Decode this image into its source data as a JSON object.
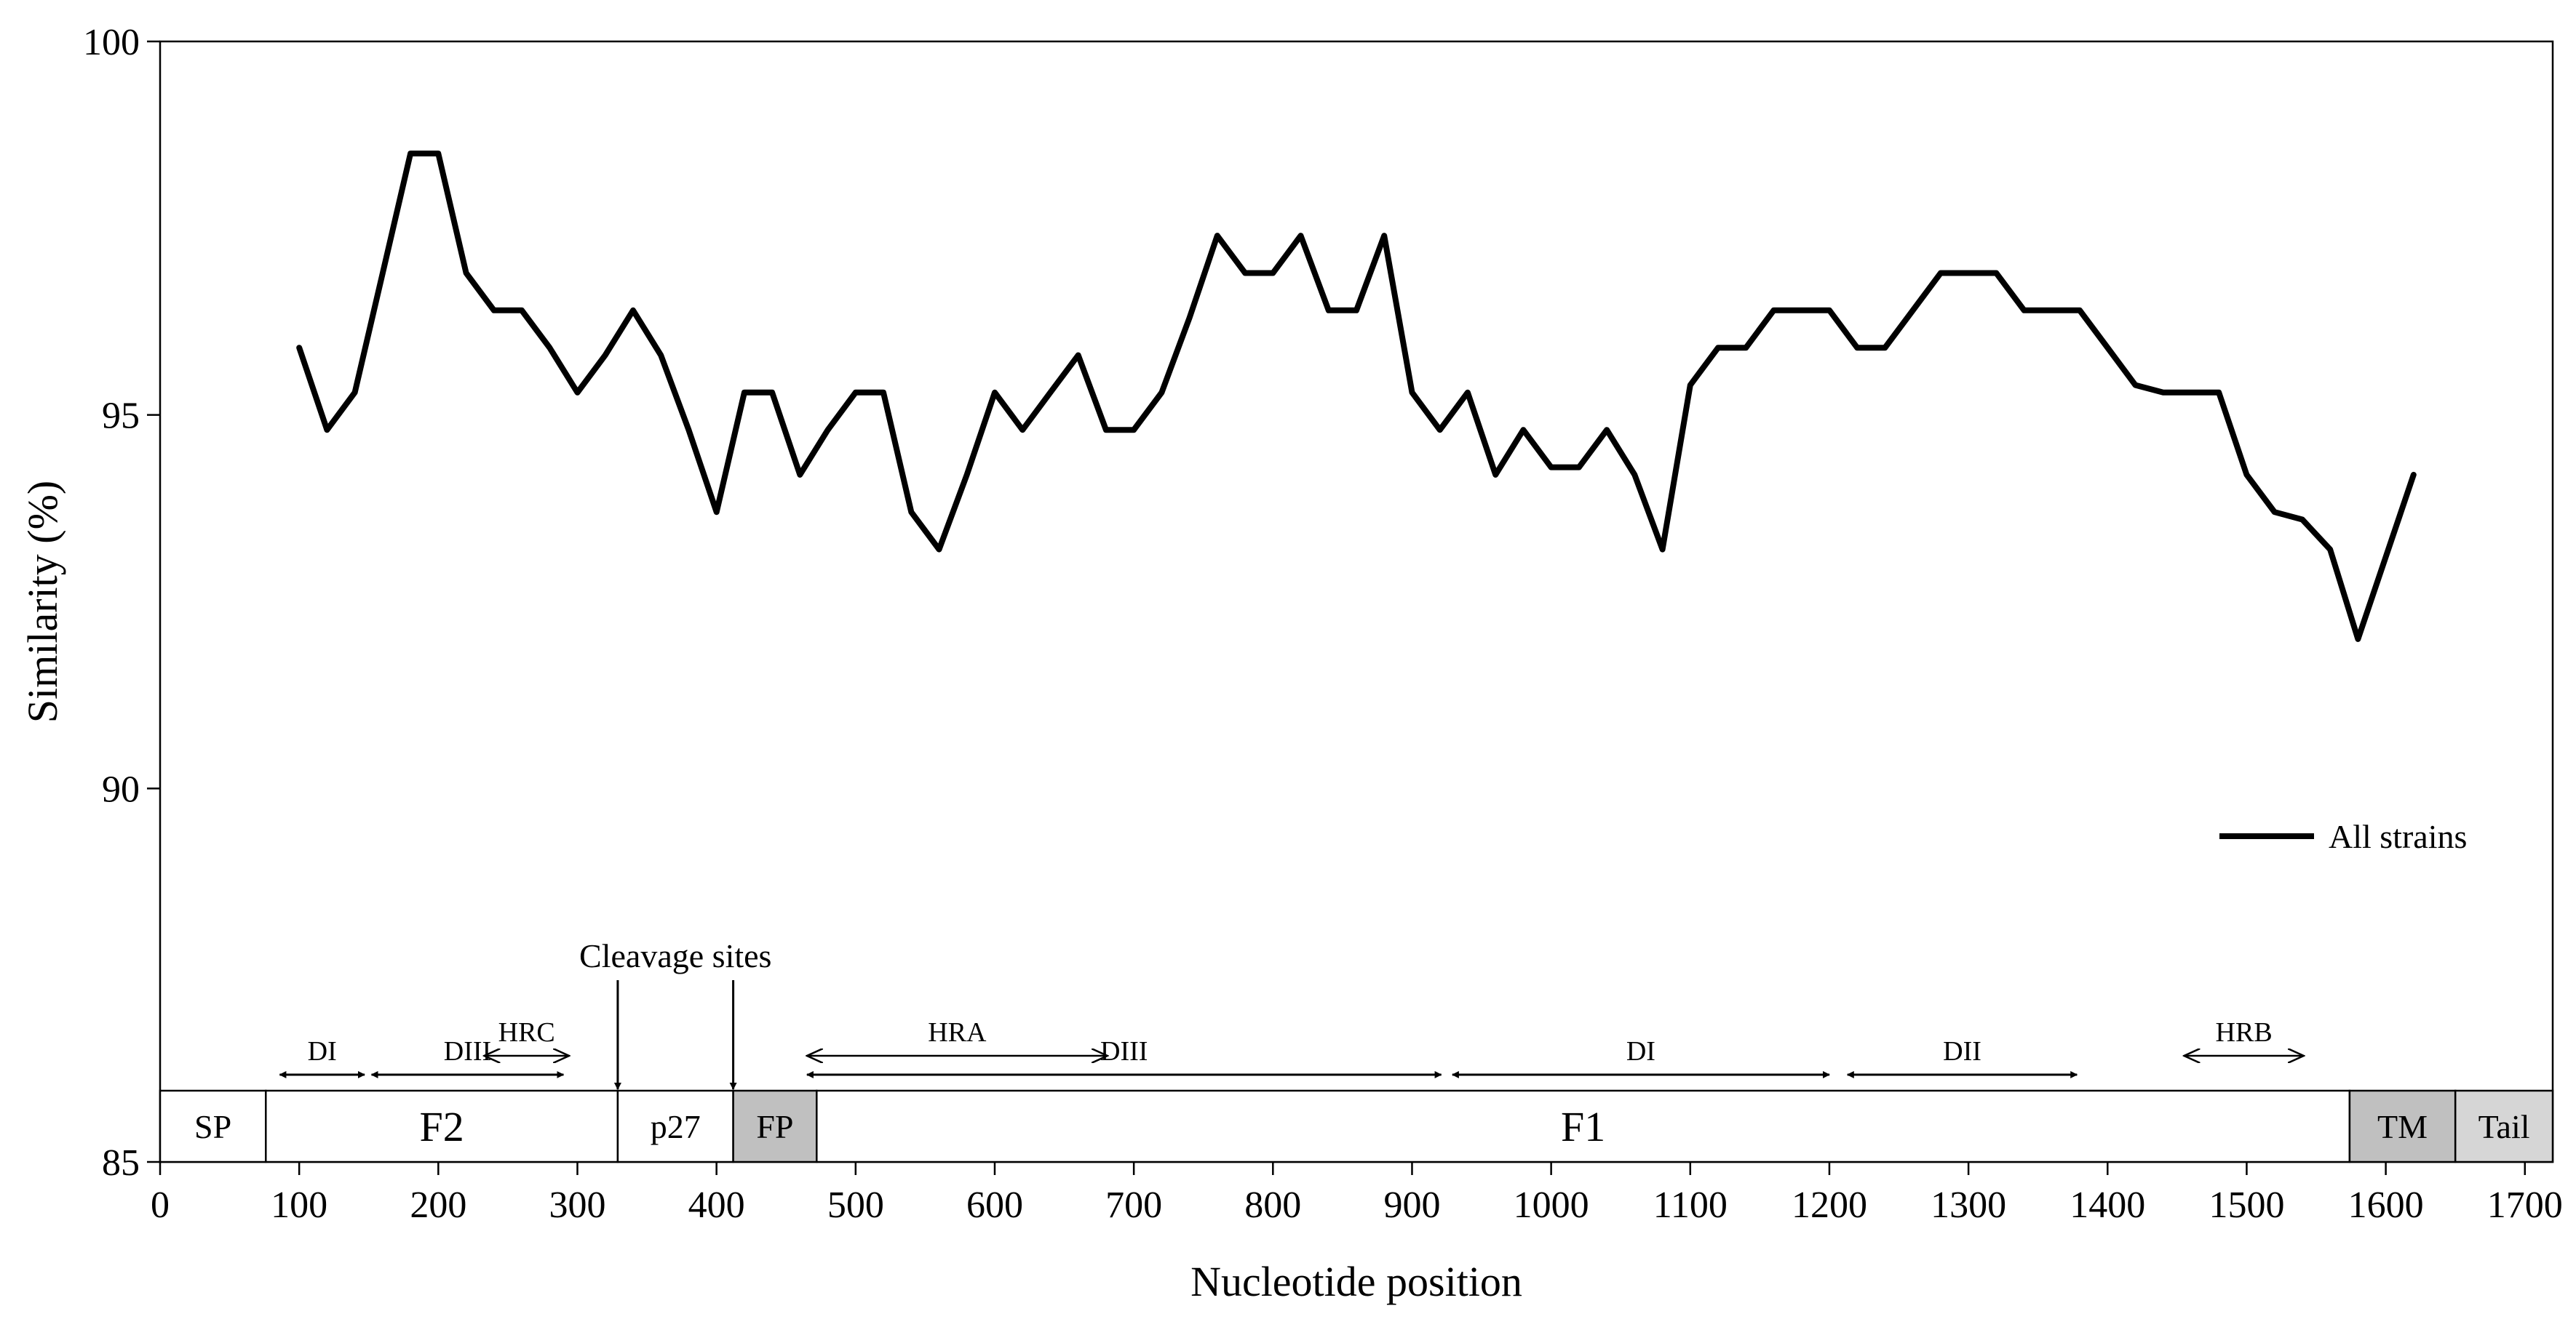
{
  "chart_data": {
    "type": "line",
    "xlabel": "Nucleotide position",
    "ylabel": "Similarity (%)",
    "xlim": [
      0,
      1720
    ],
    "ylim": [
      85,
      100
    ],
    "xticks": [
      "0",
      "100",
      "200",
      "300",
      "400",
      "500",
      "600",
      "700",
      "800",
      "900",
      "1000",
      "1100",
      "1200",
      "1300",
      "1400",
      "1500",
      "1600",
      "1700"
    ],
    "yticks": [
      "85",
      "90",
      "95",
      "100"
    ],
    "legend": {
      "position": "bottom-right",
      "label": "All strains"
    },
    "series": [
      {
        "name": "All strains",
        "color": "#000000",
        "x": [
          100,
          120,
          140,
          160,
          180,
          200,
          220,
          240,
          260,
          280,
          300,
          320,
          340,
          360,
          380,
          400,
          420,
          440,
          460,
          480,
          500,
          520,
          540,
          560,
          580,
          600,
          620,
          640,
          660,
          680,
          700,
          720,
          740,
          760,
          780,
          800,
          820,
          840,
          860,
          880,
          900,
          920,
          940,
          960,
          980,
          1000,
          1020,
          1040,
          1060,
          1080,
          1100,
          1120,
          1140,
          1160,
          1180,
          1200,
          1220,
          1240,
          1260,
          1280,
          1300,
          1320,
          1340,
          1360,
          1380,
          1400,
          1420,
          1440,
          1460,
          1480,
          1500,
          1520,
          1540,
          1560,
          1580,
          1600,
          1620
        ],
        "y": [
          95.9,
          94.8,
          95.3,
          96.9,
          98.5,
          98.5,
          96.9,
          96.4,
          96.4,
          95.9,
          95.3,
          95.8,
          96.4,
          95.8,
          94.8,
          93.7,
          95.3,
          95.3,
          94.2,
          94.8,
          95.3,
          95.3,
          93.7,
          93.2,
          94.2,
          95.3,
          94.8,
          95.3,
          95.8,
          94.8,
          94.8,
          95.3,
          96.3,
          97.4,
          96.9,
          96.9,
          97.4,
          96.4,
          96.4,
          97.4,
          95.3,
          94.8,
          95.3,
          94.2,
          94.8,
          94.3,
          94.3,
          94.8,
          94.2,
          93.2,
          95.4,
          95.9,
          95.9,
          96.4,
          96.4,
          96.4,
          95.9,
          95.9,
          96.4,
          96.9,
          96.9,
          96.9,
          96.4,
          96.4,
          96.4,
          95.9,
          95.4,
          95.3,
          95.3,
          95.3,
          94.2,
          93.7,
          93.6,
          93.2,
          92.0,
          93.1,
          94.2
        ]
      }
    ],
    "regions": [
      {
        "label": "SP",
        "start": 0,
        "end": 76,
        "fill": "#ffffff"
      },
      {
        "label": "F2",
        "start": 76,
        "end": 329,
        "fill": "#ffffff"
      },
      {
        "label": "p27",
        "start": 329,
        "end": 412,
        "fill": "#ffffff"
      },
      {
        "label": "FP",
        "start": 412,
        "end": 472,
        "fill": "#c0c0c0"
      },
      {
        "label": "F1",
        "start": 472,
        "end": 1574,
        "fill": "#ffffff"
      },
      {
        "label": "TM",
        "start": 1574,
        "end": 1650,
        "fill": "#c0c0c0"
      },
      {
        "label": "Tail",
        "start": 1650,
        "end": 1720,
        "fill": "#d6d6d6"
      }
    ],
    "domains": [
      {
        "label": "DI",
        "start": 86,
        "end": 147,
        "row": "lower",
        "head": "filled"
      },
      {
        "label": "DIII",
        "start": 152,
        "end": 290,
        "row": "lower",
        "head": "filled"
      },
      {
        "label": "HRC",
        "start": 233,
        "end": 294,
        "row": "upper",
        "head": "open"
      },
      {
        "label": "HRA",
        "start": 465,
        "end": 681,
        "row": "upper",
        "head": "open"
      },
      {
        "label": "DIII",
        "start": 465,
        "end": 921,
        "row": "lower",
        "head": "filled"
      },
      {
        "label": "DI",
        "start": 929,
        "end": 1200,
        "row": "lower",
        "head": "filled"
      },
      {
        "label": "DII",
        "start": 1213,
        "end": 1378,
        "row": "lower",
        "head": "filled"
      },
      {
        "label": "HRB",
        "start": 1455,
        "end": 1541,
        "row": "upper",
        "head": "open"
      }
    ],
    "annotations": [
      {
        "text": "Cleavage sites",
        "arrows_at": [
          329,
          412
        ]
      }
    ]
  }
}
